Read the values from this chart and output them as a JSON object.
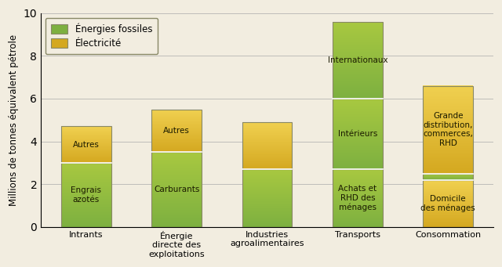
{
  "categories": [
    "Intrants",
    "Énergie\ndirecte des\nexploitations",
    "Industries\nagroalimentaires",
    "Transports",
    "Consommation"
  ],
  "ylabel": "Millions de tonnes équivalent pétrole",
  "ylim": [
    0,
    10
  ],
  "yticks": [
    0,
    2,
    4,
    6,
    8,
    10
  ],
  "legend_fossil": "Énergies fossiles",
  "legend_elec": "Électricité",
  "fossil_color_bottom": "#7DB040",
  "fossil_color_top": "#A8C840",
  "elec_color_bottom": "#D4A820",
  "elec_color_top": "#F0D050",
  "background_color": "#F2EDE0",
  "bar_edge_color": "#888866",
  "label_fontsize": 7.5,
  "ylabel_fontsize": 8.5,
  "bars": [
    {
      "segments": [
        {
          "value": 3.0,
          "type": "fossil",
          "label": "Engrais\nazotés"
        },
        {
          "value": 1.7,
          "type": "elec",
          "label": "Autres"
        }
      ]
    },
    {
      "segments": [
        {
          "value": 3.5,
          "type": "fossil",
          "label": "Carburants"
        },
        {
          "value": 2.0,
          "type": "elec",
          "label": "Autres"
        }
      ]
    },
    {
      "segments": [
        {
          "value": 2.7,
          "type": "fossil",
          "label": ""
        },
        {
          "value": 2.2,
          "type": "elec",
          "label": ""
        }
      ]
    },
    {
      "segments": [
        {
          "value": 2.7,
          "type": "fossil",
          "label": "Achats et\nRHD des\nménages"
        },
        {
          "value": 3.3,
          "type": "fossil",
          "label": "Intérieurs"
        },
        {
          "value": 3.6,
          "type": "fossil",
          "label": "Internationaux"
        }
      ]
    },
    {
      "segments": [
        {
          "value": 2.2,
          "type": "elec",
          "label": "Domicile\ndes ménages"
        },
        {
          "value": 0.3,
          "type": "fossil",
          "label": ""
        },
        {
          "value": 4.1,
          "type": "elec",
          "label": "Grande\ndistribution,\ncommerces,\nRHD"
        }
      ]
    }
  ]
}
